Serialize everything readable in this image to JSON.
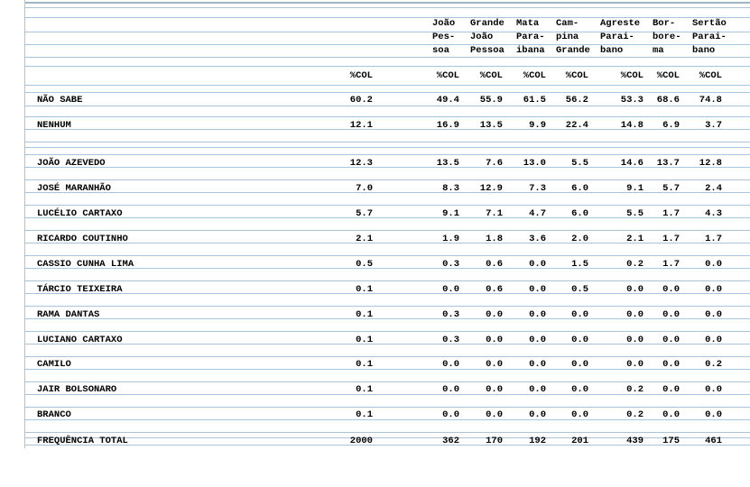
{
  "header": {
    "columns": [
      {
        "lines": [
          "João",
          "Pes-",
          "soa"
        ]
      },
      {
        "lines": [
          "Grande",
          "João",
          "Pessoa"
        ]
      },
      {
        "lines": [
          "Mata",
          "Para-",
          "ibana"
        ]
      },
      {
        "lines": [
          "Cam-",
          "pina",
          "Grande"
        ]
      },
      {
        "lines": [
          "Agreste",
          "Parai-",
          "bano"
        ]
      },
      {
        "lines": [
          "Bor-",
          "bore-",
          "ma"
        ]
      },
      {
        "lines": [
          "Sertão",
          "Parai-",
          "bano"
        ]
      }
    ],
    "col_labels": [
      "%COL",
      "%COL",
      "%COL",
      "%COL",
      "%COL",
      "%COL",
      "%COL",
      "%COL"
    ]
  },
  "rows": [
    {
      "label": "NÃO SABE",
      "values": [
        "60.2",
        "49.4",
        "55.9",
        "61.5",
        "56.2",
        "53.3",
        "68.6",
        "74.8"
      ]
    },
    {
      "label": "NENHUM",
      "values": [
        "12.1",
        "16.9",
        "13.5",
        "9.9",
        "22.4",
        "14.8",
        "6.9",
        "3.7"
      ]
    },
    {
      "label": "JOÃO AZEVEDO",
      "values": [
        "12.3",
        "13.5",
        "7.6",
        "13.0",
        "5.5",
        "14.6",
        "13.7",
        "12.8"
      ]
    },
    {
      "label": "JOSÉ MARANHÃO",
      "values": [
        "7.0",
        "8.3",
        "12.9",
        "7.3",
        "6.0",
        "9.1",
        "5.7",
        "2.4"
      ]
    },
    {
      "label": "LUCÉLIO CARTAXO",
      "values": [
        "5.7",
        "9.1",
        "7.1",
        "4.7",
        "6.0",
        "5.5",
        "1.7",
        "4.3"
      ]
    },
    {
      "label": "RICARDO COUTINHO",
      "values": [
        "2.1",
        "1.9",
        "1.8",
        "3.6",
        "2.0",
        "2.1",
        "1.7",
        "1.7"
      ]
    },
    {
      "label": "CASSIO CUNHA LIMA",
      "values": [
        "0.5",
        "0.3",
        "0.6",
        "0.0",
        "1.5",
        "0.2",
        "1.7",
        "0.0"
      ]
    },
    {
      "label": "TÁRCIO TEIXEIRA",
      "values": [
        "0.1",
        "0.0",
        "0.6",
        "0.0",
        "0.5",
        "0.0",
        "0.0",
        "0.0"
      ]
    },
    {
      "label": "RAMA DANTAS",
      "values": [
        "0.1",
        "0.3",
        "0.0",
        "0.0",
        "0.0",
        "0.0",
        "0.0",
        "0.0"
      ]
    },
    {
      "label": "LUCIANO CARTAXO",
      "values": [
        "0.1",
        "0.3",
        "0.0",
        "0.0",
        "0.0",
        "0.0",
        "0.0",
        "0.0"
      ]
    },
    {
      "label": "CAMILO",
      "values": [
        "0.1",
        "0.0",
        "0.0",
        "0.0",
        "0.0",
        "0.0",
        "0.0",
        "0.2"
      ]
    },
    {
      "label": "JAIR BOLSONARO",
      "values": [
        "0.1",
        "0.0",
        "0.0",
        "0.0",
        "0.0",
        "0.2",
        "0.0",
        "0.0"
      ]
    },
    {
      "label": "BRANCO",
      "values": [
        "0.1",
        "0.0",
        "0.0",
        "0.0",
        "0.0",
        "0.2",
        "0.0",
        "0.0"
      ]
    }
  ],
  "total": {
    "label": "FREQUÊNCIA TOTAL",
    "values": [
      "2000",
      "362",
      "170",
      "192",
      "201",
      "439",
      "175",
      "461"
    ]
  },
  "colors": {
    "grid": "#a8c4dc",
    "text": "#000000"
  }
}
